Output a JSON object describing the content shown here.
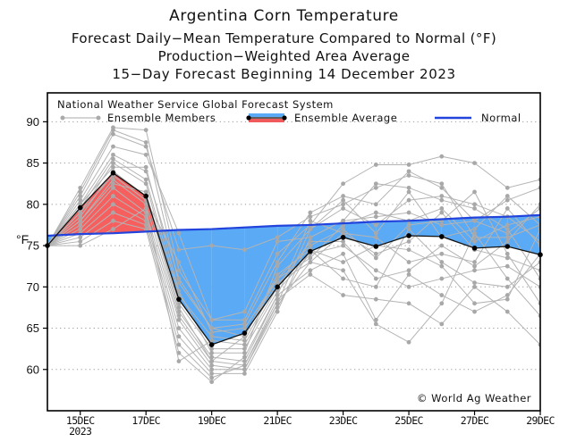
{
  "titles": {
    "main": "Argentina Corn Temperature",
    "line2": "Forecast Daily−Mean Temperature Compared to Normal (°F)",
    "line3": "Production−Weighted Area Average",
    "line4": "15−Day Forecast Beginning 14 December 2023"
  },
  "chart_data": {
    "type": "line",
    "title": "Argentina Corn Temperature",
    "subtitle": "Forecast Daily−Mean Temperature Compared to Normal (°F) / Production−Weighted Area Average / 15−Day Forecast Beginning 14 December 2023",
    "xlabel": "",
    "ylabel": "°F",
    "x": [
      "14DEC",
      "15DEC",
      "16DEC",
      "17DEC",
      "18DEC",
      "19DEC",
      "20DEC",
      "21DEC",
      "22DEC",
      "23DEC",
      "24DEC",
      "25DEC",
      "26DEC",
      "27DEC",
      "28DEC",
      "29DEC"
    ],
    "x_tick_labels": [
      "15DEC",
      "17DEC",
      "19DEC",
      "21DEC",
      "23DEC",
      "25DEC",
      "27DEC",
      "29DEC"
    ],
    "x_tick_days": [
      1,
      3,
      5,
      7,
      9,
      11,
      13,
      15
    ],
    "x_sub_label": "2023",
    "ylim": [
      55,
      93.5
    ],
    "y_ticks": [
      60,
      65,
      70,
      75,
      80,
      85,
      90
    ],
    "grid": "horizontal-dotted",
    "legend_header": "National Weather Service Global Forecast System",
    "legend": [
      {
        "name": "Ensemble Members",
        "color": "#aaaaaa"
      },
      {
        "name": "Ensemble Average",
        "colors": [
          "#5aaaf5",
          "#f05a5a"
        ]
      },
      {
        "name": "Normal",
        "color": "#2244dd"
      }
    ],
    "legend_position": "top",
    "annotation": "© World Ag Weather",
    "series": [
      {
        "name": "Normal",
        "values": [
          76.2,
          76.4,
          76.5,
          76.7,
          76.9,
          77.0,
          77.2,
          77.4,
          77.5,
          77.7,
          77.9,
          78.0,
          78.2,
          78.4,
          78.5,
          78.7
        ]
      },
      {
        "name": "Ensemble Average",
        "values": [
          75.0,
          79.6,
          83.8,
          81.0,
          68.5,
          63.0,
          64.4,
          70.0,
          74.3,
          76.0,
          74.9,
          76.2,
          76.1,
          74.7,
          74.9,
          73.9
        ]
      }
    ],
    "ensemble_members": [
      [
        75.0,
        82.0,
        89.3,
        89.0,
        72.0,
        66.0,
        66.0,
        74.0,
        77.5,
        82.5,
        84.8,
        84.8,
        85.8,
        85.0,
        82.0,
        83.0
      ],
      [
        75.0,
        81.5,
        89.0,
        87.5,
        70.5,
        65.0,
        65.5,
        73.0,
        79.0,
        81.0,
        80.0,
        84.0,
        82.0,
        78.0,
        80.5,
        82.0
      ],
      [
        75.0,
        81.0,
        88.5,
        87.0,
        74.5,
        75.0,
        74.5,
        76.0,
        78.5,
        80.0,
        82.0,
        83.5,
        82.5,
        76.0,
        76.0,
        77.5
      ],
      [
        75.0,
        80.5,
        87.0,
        86.0,
        76.5,
        66.0,
        67.0,
        75.5,
        76.0,
        78.0,
        82.5,
        82.0,
        80.5,
        79.5,
        77.0,
        71.0
      ],
      [
        75.0,
        80.0,
        86.0,
        84.0,
        71.0,
        65.0,
        64.0,
        71.0,
        75.0,
        77.0,
        73.5,
        77.5,
        78.0,
        81.5,
        74.0,
        68.0
      ],
      [
        75.0,
        79.5,
        85.5,
        83.0,
        69.0,
        64.0,
        63.5,
        70.5,
        73.0,
        76.5,
        76.0,
        73.0,
        74.0,
        73.0,
        79.5,
        75.0
      ],
      [
        75.0,
        79.0,
        85.0,
        82.5,
        68.0,
        62.5,
        62.5,
        69.5,
        74.0,
        75.0,
        72.0,
        70.0,
        71.0,
        72.0,
        72.5,
        70.0
      ],
      [
        75.0,
        78.5,
        84.0,
        81.0,
        67.0,
        61.5,
        61.0,
        69.0,
        72.0,
        74.0,
        66.0,
        71.5,
        69.0,
        67.0,
        69.0,
        74.0
      ],
      [
        75.0,
        78.0,
        83.0,
        80.0,
        66.5,
        61.0,
        60.5,
        68.5,
        71.5,
        69.0,
        68.5,
        68.0,
        65.5,
        70.0,
        67.0,
        63.0
      ],
      [
        75.0,
        77.5,
        82.0,
        79.0,
        66.0,
        60.5,
        60.0,
        68.0,
        73.0,
        72.0,
        65.5,
        63.3,
        68.0,
        76.5,
        71.0,
        66.5
      ],
      [
        75.0,
        77.0,
        81.0,
        78.5,
        65.0,
        60.0,
        60.0,
        67.5,
        74.5,
        73.0,
        75.0,
        74.5,
        72.5,
        68.0,
        68.5,
        77.0
      ],
      [
        75.0,
        76.5,
        80.0,
        78.0,
        64.0,
        59.5,
        59.5,
        67.0,
        76.0,
        78.0,
        78.5,
        79.0,
        77.5,
        78.0,
        76.5,
        79.5
      ],
      [
        75.0,
        76.0,
        79.0,
        77.5,
        63.0,
        59.0,
        60.5,
        68.0,
        77.0,
        79.5,
        77.5,
        80.5,
        81.0,
        80.0,
        78.5,
        75.5
      ],
      [
        75.0,
        75.5,
        78.0,
        77.0,
        62.0,
        58.5,
        61.5,
        69.0,
        78.0,
        76.5,
        74.0,
        75.5,
        79.0,
        74.5,
        73.5,
        72.0
      ],
      [
        75.0,
        75.0,
        77.0,
        79.5,
        61.0,
        63.5,
        63.0,
        70.0,
        75.5,
        75.5,
        71.0,
        72.0,
        75.0,
        72.5,
        75.5,
        80.0
      ],
      [
        75.0,
        78.0,
        82.5,
        81.5,
        67.5,
        61.0,
        64.0,
        71.5,
        74.5,
        71.0,
        70.0,
        77.0,
        73.0,
        70.5,
        70.0,
        73.0
      ],
      [
        75.0,
        80.0,
        84.5,
        84.5,
        69.5,
        62.0,
        62.0,
        72.5,
        77.0,
        80.5,
        76.5,
        81.5,
        76.0,
        77.0,
        81.0,
        77.5
      ],
      [
        75.0,
        79.0,
        83.5,
        80.5,
        73.0,
        64.5,
        65.0,
        71.0,
        73.5,
        77.5,
        79.0,
        78.0,
        79.5,
        75.5,
        77.5,
        78.5
      ]
    ]
  }
}
